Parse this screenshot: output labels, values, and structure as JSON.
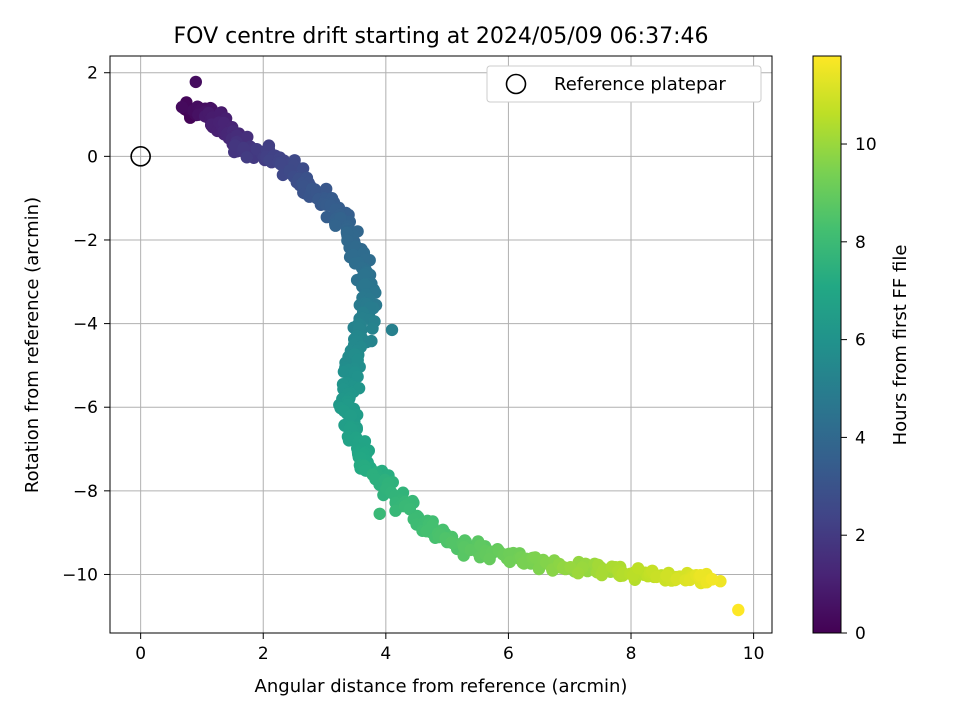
{
  "chart_data": {
    "type": "scatter",
    "title": "FOV centre drift starting at 2024/05/09 06:37:46",
    "xlabel": "Angular distance from reference (arcmin)",
    "ylabel": "Rotation from reference (arcmin)",
    "xlim": [
      -0.5,
      10.3
    ],
    "ylim": [
      -11.4,
      2.4
    ],
    "xticks": [
      0,
      2,
      4,
      6,
      8,
      10
    ],
    "yticks": [
      2,
      0,
      -2,
      -4,
      -6,
      -8,
      -10
    ],
    "xtick_labels": [
      "0",
      "2",
      "4",
      "6",
      "8",
      "10"
    ],
    "ytick_labels": [
      "2",
      "0",
      "−2",
      "−4",
      "−6",
      "−8",
      "−10"
    ],
    "grid": true,
    "legend": {
      "placement": "top-right",
      "entries": [
        "Reference platepar"
      ]
    },
    "reference_point": {
      "x": 0,
      "y": 0
    },
    "colorbar": {
      "label": "Hours from first FF file",
      "range": [
        0,
        11.8
      ],
      "ticks": [
        0,
        2,
        4,
        6,
        8,
        10
      ],
      "tick_labels": [
        "0",
        "2",
        "4",
        "6",
        "8",
        "10"
      ],
      "colormap": "viridis"
    },
    "track": [
      {
        "x": 0.8,
        "y": 1.05,
        "t": 0.0
      },
      {
        "x": 0.9,
        "y": 1.1,
        "t": 0.3
      },
      {
        "x": 1.1,
        "y": 1.0,
        "t": 0.6
      },
      {
        "x": 1.3,
        "y": 0.8,
        "t": 1.0
      },
      {
        "x": 1.5,
        "y": 0.4,
        "t": 1.4
      },
      {
        "x": 1.7,
        "y": 0.2,
        "t": 1.8
      },
      {
        "x": 2.1,
        "y": 0.0,
        "t": 2.2
      },
      {
        "x": 2.5,
        "y": -0.3,
        "t": 2.6
      },
      {
        "x": 2.8,
        "y": -0.8,
        "t": 3.0
      },
      {
        "x": 3.1,
        "y": -1.2,
        "t": 3.4
      },
      {
        "x": 3.4,
        "y": -1.7,
        "t": 3.8
      },
      {
        "x": 3.6,
        "y": -2.5,
        "t": 4.2
      },
      {
        "x": 3.7,
        "y": -3.2,
        "t": 4.6
      },
      {
        "x": 3.7,
        "y": -3.8,
        "t": 5.0
      },
      {
        "x": 3.55,
        "y": -4.4,
        "t": 5.4
      },
      {
        "x": 3.4,
        "y": -5.1,
        "t": 5.8
      },
      {
        "x": 3.35,
        "y": -5.8,
        "t": 6.2
      },
      {
        "x": 3.4,
        "y": -6.5,
        "t": 6.6
      },
      {
        "x": 3.6,
        "y": -7.2,
        "t": 7.0
      },
      {
        "x": 3.9,
        "y": -7.7,
        "t": 7.4
      },
      {
        "x": 4.3,
        "y": -8.3,
        "t": 7.8
      },
      {
        "x": 4.7,
        "y": -8.9,
        "t": 8.2
      },
      {
        "x": 5.2,
        "y": -9.3,
        "t": 8.6
      },
      {
        "x": 5.8,
        "y": -9.5,
        "t": 9.0
      },
      {
        "x": 6.4,
        "y": -9.7,
        "t": 9.4
      },
      {
        "x": 7.0,
        "y": -9.8,
        "t": 9.8
      },
      {
        "x": 7.6,
        "y": -9.9,
        "t": 10.2
      },
      {
        "x": 8.2,
        "y": -10.0,
        "t": 10.6
      },
      {
        "x": 8.8,
        "y": -10.05,
        "t": 11.0
      },
      {
        "x": 9.4,
        "y": -10.1,
        "t": 11.6
      }
    ],
    "extra_points": [
      {
        "x": 0.9,
        "y": 1.78,
        "t": 0.4
      },
      {
        "x": 9.75,
        "y": -10.85,
        "t": 11.8
      },
      {
        "x": 4.1,
        "y": -4.15,
        "t": 5.1
      },
      {
        "x": 3.9,
        "y": -8.55,
        "t": 7.9
      }
    ],
    "series_count": 560
  }
}
